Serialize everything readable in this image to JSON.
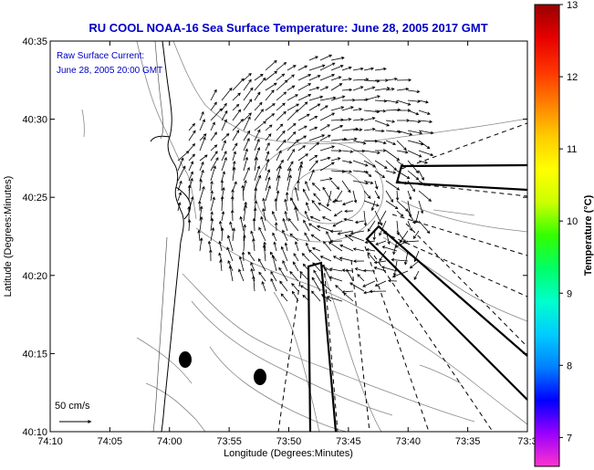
{
  "title": "RU COOL  NOAA-16  Sea Surface Temperature:  June 28, 2005 2017 GMT",
  "annotation": {
    "line1": "Raw Surface Current:",
    "line2": "June 28, 2005 20:00 GMT"
  },
  "scale_label": "50 cm/s",
  "xlabel": "Longitude (Degrees:Minutes)",
  "ylabel": "Latitude (Degrees:Minutes)",
  "x_ticks": [
    "74:10",
    "74:05",
    "74:00",
    "73:55",
    "73:50",
    "73:45",
    "73:40",
    "73:35",
    "73:3"
  ],
  "y_ticks": [
    "40:35",
    "40:30",
    "40:25",
    "40:20",
    "40:15",
    "40:10"
  ],
  "colorbar": {
    "label": "Temperature (°C)",
    "ticks": [
      "13",
      "12",
      "11",
      "10",
      "9",
      "8",
      "7"
    ],
    "min": 6.6,
    "max": 13,
    "colors": [
      "#ff33cc",
      "#9900ff",
      "#0000ff",
      "#0080ff",
      "#00ccff",
      "#00ffcc",
      "#00ff66",
      "#33ff00",
      "#ccff00",
      "#ffff00",
      "#ffcc00",
      "#ff8000",
      "#ff3300",
      "#e60000",
      "#990000"
    ]
  },
  "colors": {
    "title": "#0000c8",
    "contour": "#888888",
    "coast": "#000000"
  }
}
